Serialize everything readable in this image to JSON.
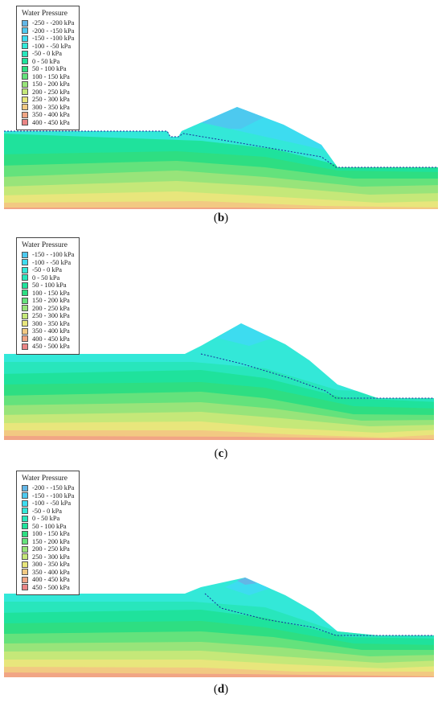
{
  "panels": [
    {
      "label": "b",
      "legend": {
        "title": "Water Pressure",
        "items": [
          {
            "range": "-250 - -200 kPa",
            "color": "#63b6e6"
          },
          {
            "range": "-200 - -150 kPa",
            "color": "#4dc9ef"
          },
          {
            "range": "-150 - -100 kPa",
            "color": "#3ddcf0"
          },
          {
            "range": "-100 - -50 kPa",
            "color": "#33e8d8"
          },
          {
            "range": "-50 - 0 kPa",
            "color": "#28e6bc"
          },
          {
            "range": "0 - 50 kPa",
            "color": "#1fe29c"
          },
          {
            "range": "50 - 100 kPa",
            "color": "#2ede82"
          },
          {
            "range": "100 - 150 kPa",
            "color": "#64e27c"
          },
          {
            "range": "150 - 200 kPa",
            "color": "#98e47a"
          },
          {
            "range": "200 - 250 kPa",
            "color": "#c5e879"
          },
          {
            "range": "250 - 300 kPa",
            "color": "#e8e67c"
          },
          {
            "range": "300 - 350 kPa",
            "color": "#f2c982"
          },
          {
            "range": "350 - 400 kPa",
            "color": "#f1a585"
          },
          {
            "range": "400 - 450 kPa",
            "color": "#ea8585"
          }
        ]
      }
    },
    {
      "label": "c",
      "legend": {
        "title": "Water Pressure",
        "items": [
          {
            "range": "-150 - -100 kPa",
            "color": "#4dc9ef"
          },
          {
            "range": "-100 - -50 kPa",
            "color": "#3ddcf0"
          },
          {
            "range": "-50 - 0 kPa",
            "color": "#33e8d8"
          },
          {
            "range": "0 - 50 kPa",
            "color": "#28e6bc"
          },
          {
            "range": "50 - 100 kPa",
            "color": "#1fe29c"
          },
          {
            "range": "100 - 150 kPa",
            "color": "#2ede82"
          },
          {
            "range": "150 - 200 kPa",
            "color": "#64e27c"
          },
          {
            "range": "200 - 250 kPa",
            "color": "#98e47a"
          },
          {
            "range": "250 - 300 kPa",
            "color": "#c5e879"
          },
          {
            "range": "300 - 350 kPa",
            "color": "#e8e67c"
          },
          {
            "range": "350 - 400 kPa",
            "color": "#f2c982"
          },
          {
            "range": "400 - 450 kPa",
            "color": "#f1a585"
          },
          {
            "range": "450 - 500 kPa",
            "color": "#ea8585"
          }
        ]
      }
    },
    {
      "label": "d",
      "legend": {
        "title": "Water Pressure",
        "items": [
          {
            "range": "-200 - -150 kPa",
            "color": "#63b6e6"
          },
          {
            "range": "-150 - -100 kPa",
            "color": "#4dc9ef"
          },
          {
            "range": "-100 - -50 kPa",
            "color": "#3ddcf0"
          },
          {
            "range": "-50 - 0 kPa",
            "color": "#33e8d8"
          },
          {
            "range": "0 - 50 kPa",
            "color": "#28e6bc"
          },
          {
            "range": "50 - 100 kPa",
            "color": "#1fe29c"
          },
          {
            "range": "100 - 150 kPa",
            "color": "#2ede82"
          },
          {
            "range": "150 - 200 kPa",
            "color": "#64e27c"
          },
          {
            "range": "200 - 250 kPa",
            "color": "#98e47a"
          },
          {
            "range": "250 - 300 kPa",
            "color": "#c5e879"
          },
          {
            "range": "300 - 350 kPa",
            "color": "#e8e67c"
          },
          {
            "range": "350 - 400 kPa",
            "color": "#f2c982"
          },
          {
            "range": "400 - 450 kPa",
            "color": "#f1a585"
          },
          {
            "range": "450 - 500 kPa",
            "color": "#ea8585"
          }
        ]
      }
    }
  ],
  "colors": {
    "reservoir": "#bfeef5",
    "phreatic_line": "#1a2a9a",
    "legend_border": "#444444"
  }
}
